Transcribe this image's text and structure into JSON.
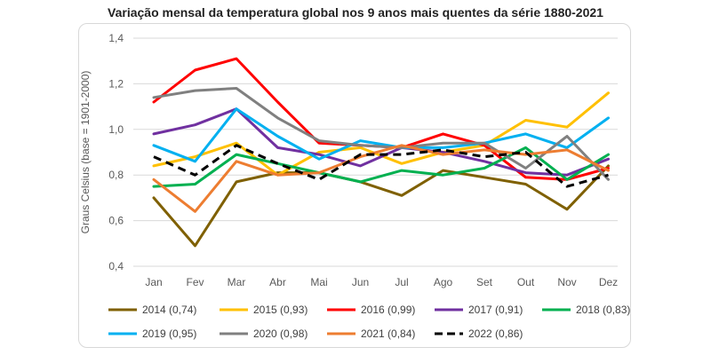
{
  "chart_data": {
    "type": "line",
    "title": "Variação mensal da temperatura global nos 9 anos mais quentes da série 1880-2021",
    "xlabel": "",
    "ylabel": "Graus Celsius (base = 1901-2000)",
    "ylim": [
      0.4,
      1.4
    ],
    "yticks": [
      "0,4",
      "0,6",
      "0,8",
      "1,0",
      "1,2",
      "1,4"
    ],
    "grid": "horizontal",
    "legend": "bottom",
    "categories": [
      "Jan",
      "Fev",
      "Mar",
      "Abr",
      "Mai",
      "Jun",
      "Jul",
      "Ago",
      "Set",
      "Out",
      "Nov",
      "Dez"
    ],
    "series": [
      {
        "name": "2014 (0,74)",
        "color": "#7f6000",
        "dashed": false,
        "values": [
          0.7,
          0.49,
          0.77,
          0.81,
          0.81,
          0.77,
          0.71,
          0.82,
          0.79,
          0.76,
          0.65,
          0.84
        ]
      },
      {
        "name": "2015 (0,93)",
        "color": "#ffc000",
        "dashed": false,
        "values": [
          0.84,
          0.88,
          0.94,
          0.8,
          0.9,
          0.92,
          0.85,
          0.9,
          0.93,
          1.04,
          1.01,
          1.16
        ]
      },
      {
        "name": "2016 (0,99)",
        "color": "#ff0000",
        "dashed": false,
        "values": [
          1.12,
          1.26,
          1.31,
          1.12,
          0.94,
          0.93,
          0.92,
          0.98,
          0.93,
          0.79,
          0.78,
          0.83
        ]
      },
      {
        "name": "2017 (0,91)",
        "color": "#7030a0",
        "dashed": false,
        "values": [
          0.98,
          1.02,
          1.09,
          0.92,
          0.89,
          0.84,
          0.92,
          0.9,
          0.86,
          0.81,
          0.8,
          0.87
        ]
      },
      {
        "name": "2018 (0,83)",
        "color": "#00b050",
        "dashed": false,
        "values": [
          0.75,
          0.76,
          0.89,
          0.85,
          0.81,
          0.77,
          0.82,
          0.8,
          0.83,
          0.92,
          0.78,
          0.89
        ]
      },
      {
        "name": "2019 (0,95)",
        "color": "#00b0f0",
        "dashed": false,
        "values": [
          0.93,
          0.86,
          1.09,
          0.97,
          0.87,
          0.95,
          0.92,
          0.92,
          0.94,
          0.98,
          0.92,
          1.05
        ]
      },
      {
        "name": "2020 (0,98)",
        "color": "#808080",
        "dashed": false,
        "values": [
          1.14,
          1.17,
          1.18,
          1.05,
          0.95,
          0.93,
          0.92,
          0.94,
          0.94,
          0.83,
          0.97,
          0.78
        ]
      },
      {
        "name": "2021 (0,84)",
        "color": "#ed7d31",
        "dashed": false,
        "values": [
          0.78,
          0.64,
          0.86,
          0.8,
          0.81,
          0.88,
          0.93,
          0.89,
          0.91,
          0.89,
          0.91,
          0.82
        ]
      },
      {
        "name": "2022 (0,86)",
        "color": "#000000",
        "dashed": true,
        "values": [
          0.88,
          0.8,
          0.93,
          0.85,
          0.78,
          0.89,
          0.89,
          0.91,
          0.88,
          0.9,
          0.75,
          0.8
        ]
      }
    ]
  }
}
